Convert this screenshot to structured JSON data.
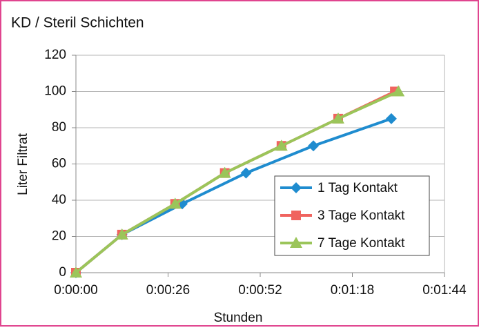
{
  "chart_data": {
    "type": "line",
    "title": "KD / Steril Schichten",
    "x_label": "Stunden",
    "y_label": "Liter Filtrat",
    "series": [
      {
        "name": "1 Tag Kontakt",
        "color": "#1f8ccf",
        "marker": "diamond",
        "x": [
          0,
          13,
          30,
          48,
          67,
          89
        ],
        "values": [
          0,
          21,
          38,
          55,
          70,
          85
        ]
      },
      {
        "name": "3 Tage Kontakt",
        "color": "#f0645f",
        "marker": "square",
        "x": [
          0,
          13,
          28,
          42,
          58,
          74,
          90
        ],
        "values": [
          0,
          21,
          38,
          55,
          70,
          85,
          100
        ]
      },
      {
        "name": "7 Tage Kontakt",
        "color": "#9bc55a",
        "marker": "triangle",
        "x": [
          0,
          13,
          28,
          42,
          58,
          74,
          91
        ],
        "values": [
          0,
          21,
          38,
          55,
          70,
          85,
          100
        ]
      }
    ],
    "xlim": [
      0,
      104
    ],
    "ylim": [
      0,
      120
    ],
    "xticks": [
      {
        "value": 0,
        "label": "0:00:00"
      },
      {
        "value": 26,
        "label": "0:00:26"
      },
      {
        "value": 52,
        "label": "0:00:52"
      },
      {
        "value": 78,
        "label": "0:01:18"
      },
      {
        "value": 104,
        "label": "0:01:44"
      }
    ],
    "yticks": [
      0,
      20,
      40,
      60,
      80,
      100,
      120
    ],
    "grid": true,
    "legend": "lower right"
  }
}
